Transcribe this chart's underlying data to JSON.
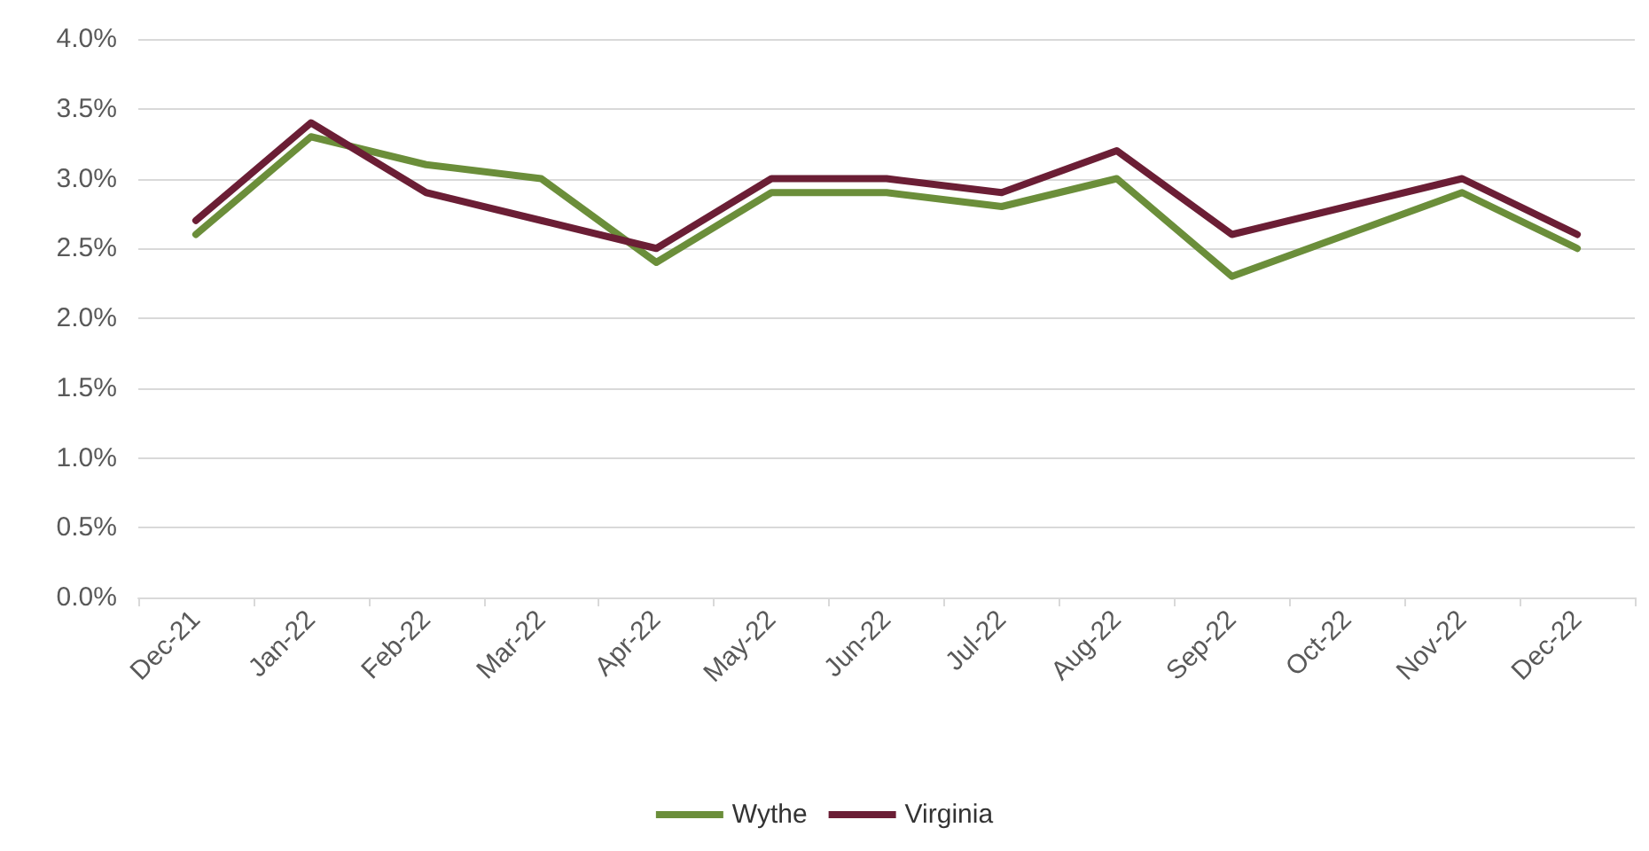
{
  "chart_data": {
    "type": "line",
    "categories": [
      "Dec-21",
      "Jan-22",
      "Feb-22",
      "Mar-22",
      "Apr-22",
      "May-22",
      "Jun-22",
      "Jul-22",
      "Aug-22",
      "Sep-22",
      "Oct-22",
      "Nov-22",
      "Dec-22"
    ],
    "series": [
      {
        "name": "Wythe",
        "color": "#6b8e3a",
        "values": [
          2.6,
          3.3,
          3.1,
          3.0,
          2.4,
          2.9,
          2.9,
          2.8,
          3.0,
          2.3,
          2.6,
          2.9,
          2.5
        ]
      },
      {
        "name": "Virginia",
        "color": "#6b1e35",
        "values": [
          2.7,
          3.4,
          2.9,
          2.7,
          2.5,
          3.0,
          3.0,
          2.9,
          3.2,
          2.6,
          2.8,
          3.0,
          2.6
        ]
      }
    ],
    "ylim": [
      0,
      4
    ],
    "yticks": [
      {
        "value": 0,
        "label": "0.0%"
      },
      {
        "value": 0.5,
        "label": "0.5%"
      },
      {
        "value": 1,
        "label": "1.0%"
      },
      {
        "value": 1.5,
        "label": "1.5%"
      },
      {
        "value": 2,
        "label": "2.0%"
      },
      {
        "value": 2.5,
        "label": "2.5%"
      },
      {
        "value": 3,
        "label": "3.0%"
      },
      {
        "value": 3.5,
        "label": "3.5%"
      },
      {
        "value": 4,
        "label": "4.0%"
      }
    ],
    "grid": "y",
    "legend": "bottom",
    "marker": "none",
    "line_style": "solid"
  }
}
